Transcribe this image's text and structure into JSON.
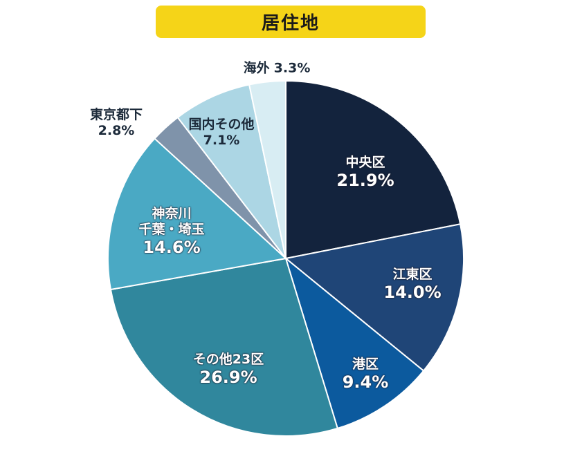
{
  "chart_data": {
    "type": "pie",
    "title": "居住地",
    "start": "top",
    "direction": "clockwise",
    "slices": [
      {
        "label": "中央区",
        "value": 21.9,
        "display": "21.9%",
        "color": "#13233d"
      },
      {
        "label": "江東区",
        "value": 14.0,
        "display": "14.0%",
        "color": "#1f4577"
      },
      {
        "label": "港区",
        "value": 9.4,
        "display": "9.4%",
        "color": "#0c5a9e"
      },
      {
        "label": "その他23区",
        "value": 26.9,
        "display": "26.9%",
        "color": "#30879d"
      },
      {
        "label": "神奈川\n千葉・埼玉",
        "label_lines": [
          "神奈川",
          "千葉・埼玉"
        ],
        "value": 14.6,
        "display": "14.6%",
        "color": "#4aa9c4"
      },
      {
        "label": "東京都下",
        "value": 2.8,
        "display": "2.8%",
        "color": "#7f93aa"
      },
      {
        "label": "国内その他",
        "value": 7.1,
        "display": "7.1%",
        "color": "#acd6e4"
      },
      {
        "label": "海外",
        "value": 3.3,
        "display": "3.3%",
        "color": "#d8edf3"
      }
    ]
  }
}
